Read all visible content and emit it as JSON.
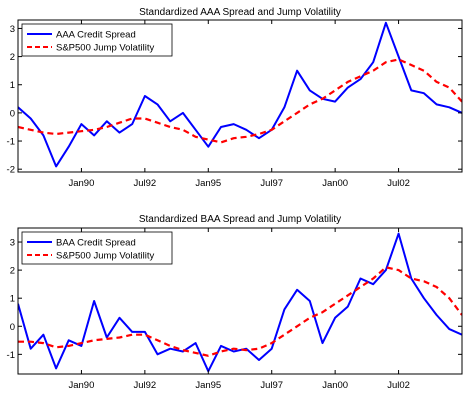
{
  "chart_data": [
    {
      "type": "line",
      "title": "Standardized AAA Spread and Jump Volatility",
      "xlabel": "",
      "ylabel": "",
      "x_tick_labels": [
        "Jan90",
        "Jul92",
        "Jan95",
        "Jul97",
        "Jan00",
        "Jul02"
      ],
      "x_tick_dates": [
        1990.0,
        1992.5,
        1995.0,
        1997.5,
        2000.0,
        2002.5
      ],
      "xlim": [
        1987.5,
        2005.0
      ],
      "ylim": [
        -2.1,
        3.3
      ],
      "y_tick_labels": [
        "-2",
        "-1",
        "0",
        "1",
        "2",
        "3"
      ],
      "y_ticks": [
        -2,
        -1,
        0,
        1,
        2,
        3
      ],
      "grid": false,
      "legend_position": "top-left",
      "x": [
        1987.5,
        1988.0,
        1988.5,
        1989.0,
        1989.5,
        1990.0,
        1990.5,
        1991.0,
        1991.5,
        1992.0,
        1992.5,
        1993.0,
        1993.5,
        1994.0,
        1994.5,
        1995.0,
        1995.5,
        1996.0,
        1996.5,
        1997.0,
        1997.5,
        1998.0,
        1998.5,
        1999.0,
        1999.5,
        2000.0,
        2000.5,
        2001.0,
        2001.5,
        2002.0,
        2002.5,
        2003.0,
        2003.5,
        2004.0,
        2004.5,
        2005.0
      ],
      "series": [
        {
          "name": "AAA Credit Spread",
          "color": "#0000ff",
          "style": "solid",
          "values": [
            0.2,
            -0.2,
            -0.8,
            -1.9,
            -1.2,
            -0.4,
            -0.8,
            -0.3,
            -0.7,
            -0.4,
            0.6,
            0.3,
            -0.3,
            0.0,
            -0.6,
            -1.2,
            -0.5,
            -0.4,
            -0.6,
            -0.9,
            -0.6,
            0.2,
            1.5,
            0.8,
            0.5,
            0.4,
            0.9,
            1.2,
            1.8,
            3.2,
            2.0,
            0.8,
            0.7,
            0.3,
            0.2,
            0.0
          ]
        },
        {
          "name": "S&P500 Jump Volatility",
          "color": "#ff0000",
          "style": "dashed",
          "values": [
            -0.5,
            -0.6,
            -0.7,
            -0.75,
            -0.7,
            -0.65,
            -0.6,
            -0.5,
            -0.35,
            -0.2,
            -0.2,
            -0.35,
            -0.5,
            -0.6,
            -0.85,
            -0.95,
            -1.05,
            -0.9,
            -0.85,
            -0.75,
            -0.6,
            -0.3,
            0.0,
            0.3,
            0.5,
            0.8,
            1.1,
            1.3,
            1.5,
            1.8,
            1.9,
            1.7,
            1.5,
            1.1,
            0.9,
            0.4
          ]
        }
      ]
    },
    {
      "type": "line",
      "title": "Standardized BAA Spread and Jump Volatility",
      "xlabel": "",
      "ylabel": "",
      "x_tick_labels": [
        "Jan90",
        "Jul92",
        "Jan95",
        "Jul97",
        "Jan00",
        "Jul02"
      ],
      "x_tick_dates": [
        1990.0,
        1992.5,
        1995.0,
        1997.5,
        2000.0,
        2002.5
      ],
      "xlim": [
        1987.5,
        2005.0
      ],
      "ylim": [
        -1.7,
        3.5
      ],
      "y_tick_labels": [
        "-1",
        "0",
        "1",
        "2",
        "3"
      ],
      "y_ticks": [
        -1,
        0,
        1,
        2,
        3
      ],
      "grid": false,
      "legend_position": "top-left",
      "x": [
        1987.5,
        1988.0,
        1988.5,
        1989.0,
        1989.5,
        1990.0,
        1990.5,
        1991.0,
        1991.5,
        1992.0,
        1992.5,
        1993.0,
        1993.5,
        1994.0,
        1994.5,
        1995.0,
        1995.5,
        1996.0,
        1996.5,
        1997.0,
        1997.5,
        1998.0,
        1998.5,
        1999.0,
        1999.5,
        2000.0,
        2000.5,
        2001.0,
        2001.5,
        2002.0,
        2002.5,
        2003.0,
        2003.5,
        2004.0,
        2004.5,
        2005.0
      ],
      "series": [
        {
          "name": "BAA Credit Spread",
          "color": "#0000ff",
          "style": "solid",
          "values": [
            0.8,
            -0.8,
            -0.3,
            -1.5,
            -0.5,
            -0.7,
            0.9,
            -0.4,
            0.3,
            -0.2,
            -0.2,
            -1.0,
            -0.8,
            -0.9,
            -0.6,
            -1.6,
            -0.7,
            -0.9,
            -0.8,
            -1.2,
            -0.8,
            0.6,
            1.3,
            0.9,
            -0.6,
            0.3,
            0.7,
            1.7,
            1.5,
            2.0,
            3.3,
            1.7,
            1.0,
            0.4,
            -0.1,
            -0.3
          ]
        },
        {
          "name": "S&P500 Jump Volatility",
          "color": "#ff0000",
          "style": "dashed",
          "values": [
            -0.55,
            -0.55,
            -0.6,
            -0.75,
            -0.7,
            -0.6,
            -0.5,
            -0.45,
            -0.4,
            -0.3,
            -0.3,
            -0.5,
            -0.7,
            -0.85,
            -0.95,
            -1.05,
            -0.9,
            -0.8,
            -0.85,
            -0.8,
            -0.6,
            -0.3,
            0.0,
            0.3,
            0.5,
            0.8,
            1.1,
            1.4,
            1.7,
            2.1,
            2.0,
            1.7,
            1.6,
            1.4,
            1.0,
            0.4
          ]
        }
      ]
    }
  ]
}
